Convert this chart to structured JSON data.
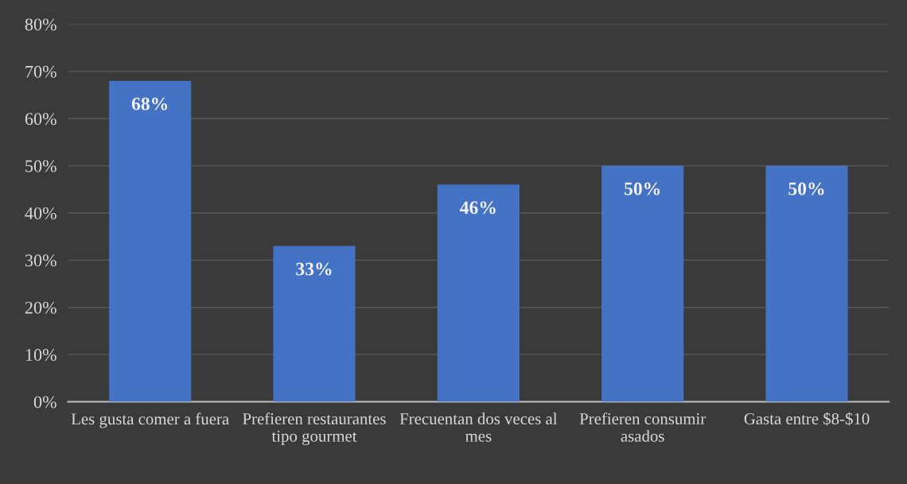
{
  "chart_data": {
    "type": "bar",
    "categories": [
      "Les gusta comer a fuera",
      "Prefieren restaurantes tipo gourmet",
      "Frecuentan dos veces al mes",
      "Prefieren consumir asados",
      "Gasta entre $8-$10"
    ],
    "values": [
      68,
      33,
      46,
      50,
      50
    ],
    "value_labels": [
      "68%",
      "33%",
      "46%",
      "50%",
      "50%"
    ],
    "color": "#4472c4",
    "ylim": [
      0,
      80
    ],
    "yticks": [
      {
        "value": 0,
        "label": "0%"
      },
      {
        "value": 10,
        "label": "10%"
      },
      {
        "value": 20,
        "label": "20%"
      },
      {
        "value": 30,
        "label": "30%"
      },
      {
        "value": 40,
        "label": "40%"
      },
      {
        "value": 50,
        "label": "50%"
      },
      {
        "value": 60,
        "label": "60%"
      },
      {
        "value": 70,
        "label": "70%"
      },
      {
        "value": 80,
        "label": "80%"
      }
    ],
    "grid": "y",
    "legend": false
  }
}
